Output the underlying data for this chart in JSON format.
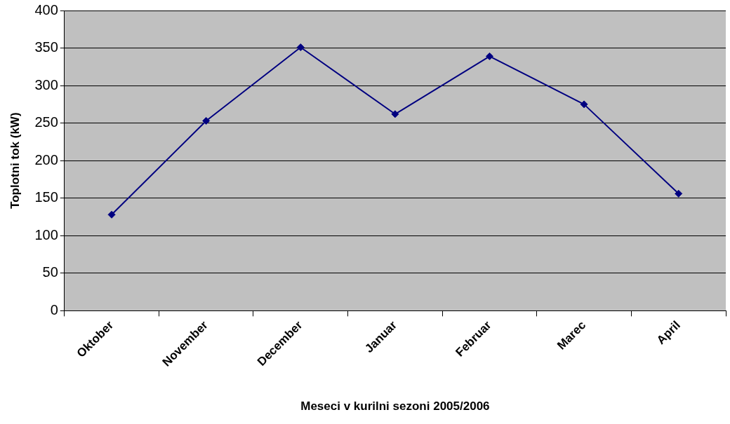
{
  "chart_data": {
    "type": "line",
    "xlabel": "Meseci v kurilni sezoni 2005/2006",
    "ylabel": "Toplotni tok (kW)",
    "categories": [
      "Oktober",
      "November",
      "December",
      "Januar",
      "Februar",
      "Marec",
      "April"
    ],
    "series": [
      {
        "color": "#000080",
        "values": [
          128,
          253,
          351,
          262,
          339,
          275,
          156
        ]
      }
    ],
    "ylim": [
      0,
      400
    ],
    "yticks": [
      0,
      50,
      100,
      150,
      200,
      250,
      300,
      350,
      400
    ],
    "grid": "y",
    "legend": false,
    "marker": "diamond",
    "line_style": "solid"
  }
}
